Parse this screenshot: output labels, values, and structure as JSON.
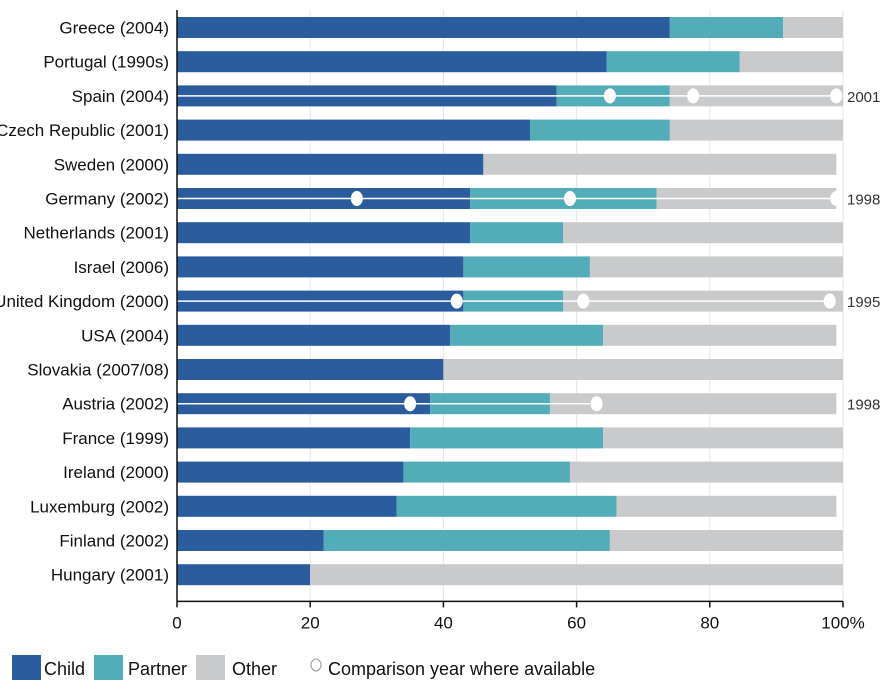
{
  "colors": {
    "child": "#2b5c9e",
    "partner": "#52adb9",
    "other": "#c9cacc",
    "comparison_line": "#ffffff"
  },
  "legend": {
    "child": "Child",
    "partner": "Partner",
    "other": "Other",
    "comparison": "Comparison year where available"
  },
  "chart_data": {
    "type": "bar",
    "orientation": "horizontal",
    "stacked": true,
    "categories": [
      "Greece  (2004)",
      "Portugal (1990s)",
      "Spain  (2004)",
      "Czech Republic  (2001)",
      "Sweden (2000)",
      "Germany  (2002)",
      "Netherlands (2001)",
      "Israel (2006)",
      "United Kingdom (2000)",
      "USA  (2004)",
      "Slovakia (2007/08)",
      "Austria (2002)",
      "France  (1999)",
      "Ireland (2000)",
      "Luxemburg (2002)",
      "Finland (2002)",
      "Hungary (2001)"
    ],
    "series": [
      {
        "name": "Child",
        "values": [
          74,
          64.5,
          57,
          53,
          46,
          44,
          44,
          43,
          43,
          41,
          40,
          38,
          35,
          34,
          33,
          22,
          20
        ]
      },
      {
        "name": "Partner",
        "values": [
          17,
          20,
          17,
          21,
          0,
          28,
          14,
          19,
          15,
          23,
          0,
          18,
          29,
          25,
          33,
          43,
          0
        ]
      },
      {
        "name": "Other",
        "values": [
          9,
          15.5,
          26,
          26,
          53,
          27,
          42,
          38,
          42,
          35,
          60,
          43,
          36,
          41,
          33,
          35,
          80
        ]
      }
    ],
    "comparison": [
      {
        "category": "Spain  (2004)",
        "year": "2001",
        "points": [
          65,
          77.5,
          99
        ]
      },
      {
        "category": "Germany  (2002)",
        "year": "1998",
        "points": [
          27,
          59,
          99
        ]
      },
      {
        "category": "United Kingdom (2000)",
        "year": "1995",
        "points": [
          42,
          61,
          98
        ]
      },
      {
        "category": "Austria (2002)",
        "year": "1998",
        "points": [
          35,
          63
        ]
      }
    ],
    "xlim": [
      0,
      100
    ],
    "xticks": [
      "0",
      "20",
      "40",
      "60",
      "80",
      "100%"
    ],
    "xtick_values": [
      0,
      20,
      40,
      60,
      80,
      100
    ],
    "grid": true,
    "legend_position": "bottom"
  }
}
